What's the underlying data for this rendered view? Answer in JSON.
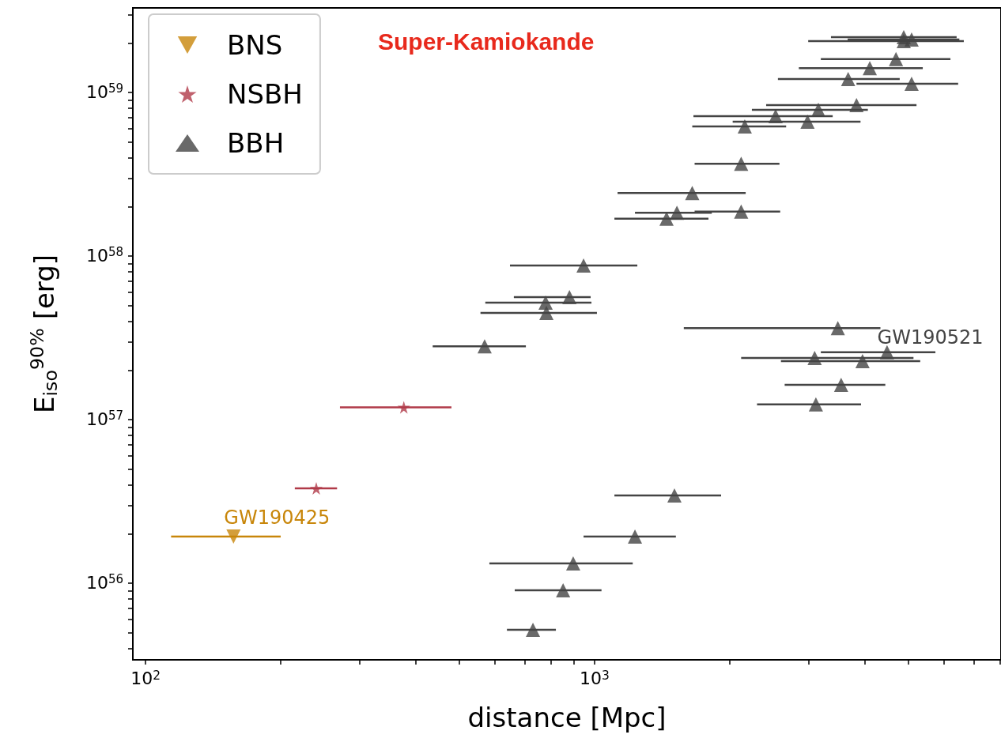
{
  "chart_data": {
    "type": "scatter",
    "title": "Super-Kamiokande",
    "xlabel": "distance [Mpc]",
    "ylabel": "E$_{iso}$$^{90%}$ [erg]",
    "log": "xy",
    "legend": "top left",
    "grid": false,
    "xlim": [
      93.7,
      8035
    ],
    "ylim": [
      3.4e+55,
      3.29e+59
    ],
    "xticks": [
      {
        "value": 100,
        "label": "10$^{2}$"
      },
      {
        "value": 200,
        "label": null
      },
      {
        "value": 300,
        "label": null
      },
      {
        "value": 400,
        "label": null
      },
      {
        "value": 500,
        "label": null
      },
      {
        "value": 600,
        "label": null
      },
      {
        "value": 700,
        "label": null
      },
      {
        "value": 800,
        "label": null
      },
      {
        "value": 900,
        "label": null
      },
      {
        "value": 1000,
        "label": "10$^{3}$"
      },
      {
        "value": 2000,
        "label": null
      },
      {
        "value": 3000,
        "label": null
      },
      {
        "value": 4000,
        "label": null
      },
      {
        "value": 5000,
        "label": null
      },
      {
        "value": 6000,
        "label": null
      },
      {
        "value": 7000,
        "label": null
      },
      {
        "value": 8000,
        "label": null
      }
    ],
    "yticks": [
      {
        "value": 4e+55,
        "label": null
      },
      {
        "value": 5e+55,
        "label": null
      },
      {
        "value": 6e+55,
        "label": null
      },
      {
        "value": 7e+55,
        "label": null
      },
      {
        "value": 8e+55,
        "label": null
      },
      {
        "value": 9e+55,
        "label": null
      },
      {
        "value": 1e+56,
        "label": "10$^{56}$"
      },
      {
        "value": 2e+56,
        "label": null
      },
      {
        "value": 3e+56,
        "label": null
      },
      {
        "value": 4e+56,
        "label": null
      },
      {
        "value": 5e+56,
        "label": null
      },
      {
        "value": 6e+56,
        "label": null
      },
      {
        "value": 7e+56,
        "label": null
      },
      {
        "value": 8e+56,
        "label": null
      },
      {
        "value": 9e+56,
        "label": null
      },
      {
        "value": 1e+57,
        "label": "10$^{57}$"
      },
      {
        "value": 2e+57,
        "label": null
      },
      {
        "value": 3e+57,
        "label": null
      },
      {
        "value": 4e+57,
        "label": null
      },
      {
        "value": 5e+57,
        "label": null
      },
      {
        "value": 6e+57,
        "label": null
      },
      {
        "value": 7e+57,
        "label": null
      },
      {
        "value": 8e+57,
        "label": null
      },
      {
        "value": 9e+57,
        "label": null
      },
      {
        "value": 1e+58,
        "label": "10$^{58}$"
      },
      {
        "value": 2e+58,
        "label": null
      },
      {
        "value": 3e+58,
        "label": null
      },
      {
        "value": 4e+58,
        "label": null
      },
      {
        "value": 5e+58,
        "label": null
      },
      {
        "value": 6e+58,
        "label": null
      },
      {
        "value": 7e+58,
        "label": null
      },
      {
        "value": 8e+58,
        "label": null
      },
      {
        "value": 9e+58,
        "label": null
      },
      {
        "value": 1e+59,
        "label": "10$^{59}$"
      },
      {
        "value": 2e+59,
        "label": null
      },
      {
        "value": 3e+59,
        "label": null
      }
    ],
    "annotations": [
      {
        "text": "GW190425",
        "x": 157,
        "y": 1.93e+56
      },
      {
        "text": "GW190521",
        "x": 3480,
        "y": 3.63e+57
      }
    ],
    "series": [
      {
        "name": "BNS",
        "color": "#c8860a",
        "marker": "triangle-down",
        "x": [
          157
        ],
        "values": [
          1.93e+56
        ],
        "xerrors": [
          [
            114,
            200
          ]
        ]
      },
      {
        "name": "NSBH",
        "color": "#b03a48",
        "marker": "star",
        "x": [
          240,
          376
        ],
        "values": [
          3.8e+56,
          1.19e+57
        ],
        "xerrors": [
          [
            215,
            267
          ],
          [
            271,
            480
          ]
        ]
      },
      {
        "name": "BBH",
        "color": "#444444",
        "marker": "triangle",
        "x": [
          729,
          851,
          896,
          1230,
          1506,
          3110,
          3540,
          3090,
          3950,
          4480,
          3480,
          569,
          781,
          778,
          879,
          945,
          1446,
          1525,
          2120,
          1650,
          2120,
          2160,
          2980,
          2530,
          3150,
          3830,
          5080,
          3670,
          4100,
          4690,
          4880,
          5080,
          4880
        ],
        "values": [
          5.19e+55,
          9.05e+55,
          1.32e+56,
          1.93e+56,
          3.44e+56,
          1.24e+57,
          1.63e+57,
          2.38e+57,
          2.28e+57,
          2.58e+57,
          3.63e+57,
          2.81e+57,
          4.49e+57,
          5.19e+57,
          5.61e+57,
          8.75e+57,
          1.69e+58,
          1.84e+58,
          1.87e+58,
          2.43e+58,
          3.67e+58,
          6.2e+58,
          6.63e+58,
          7.16e+58,
          7.83e+58,
          8.37e+58,
          1.13e+59,
          1.21e+59,
          1.41e+59,
          1.6e+59,
          2.06e+59,
          2.11e+59,
          2.18e+59
        ],
        "xerrors": [
          [
            638,
            820
          ],
          [
            664,
            1036
          ],
          [
            583,
            1216
          ],
          [
            945,
            1517
          ],
          [
            1107,
            1913
          ],
          [
            2300,
            3920
          ],
          [
            2650,
            4440
          ],
          [
            2120,
            5130
          ],
          [
            2600,
            5310
          ],
          [
            3190,
            5740
          ],
          [
            1580,
            4330
          ],
          [
            436,
            703
          ],
          [
            557,
            1012
          ],
          [
            571,
            984
          ],
          [
            661,
            980
          ],
          [
            648,
            1245
          ],
          [
            1107,
            1793
          ],
          [
            1230,
            1824
          ],
          [
            1670,
            2590
          ],
          [
            1125,
            2170
          ],
          [
            1670,
            2580
          ],
          [
            1650,
            2670
          ],
          [
            2030,
            3910
          ],
          [
            1660,
            3390
          ],
          [
            2240,
            4060
          ],
          [
            2410,
            5210
          ],
          [
            3830,
            6450
          ],
          [
            2560,
            4780
          ],
          [
            2850,
            5380
          ],
          [
            3190,
            6200
          ],
          [
            2990,
            6640
          ],
          [
            3660,
            6490
          ],
          [
            3360,
            6400
          ]
        ]
      }
    ]
  }
}
